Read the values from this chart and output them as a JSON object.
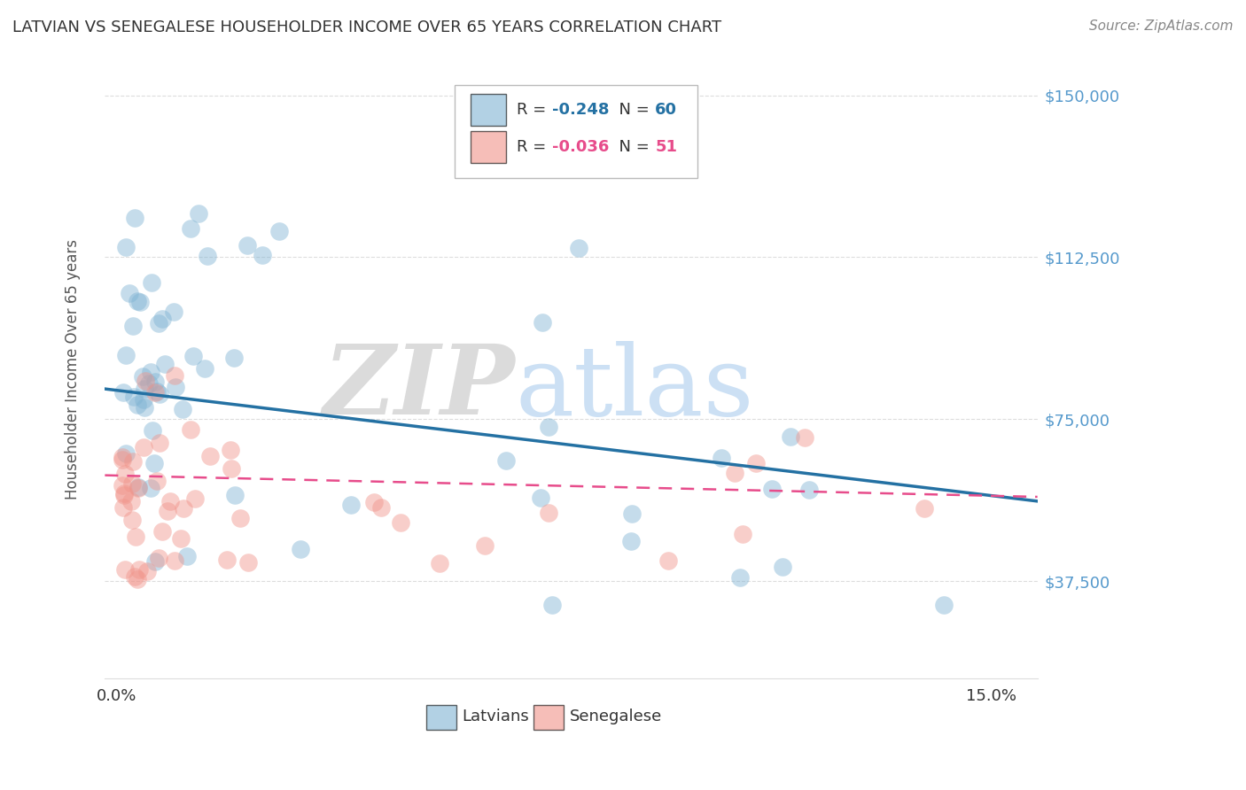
{
  "title": "LATVIAN VS SENEGALESE HOUSEHOLDER INCOME OVER 65 YEARS CORRELATION CHART",
  "source": "Source: ZipAtlas.com",
  "ylabel": "Householder Income Over 65 years",
  "ytick_labels": [
    "$37,500",
    "$75,000",
    "$112,500",
    "$150,000"
  ],
  "ytick_values": [
    37500,
    75000,
    112500,
    150000
  ],
  "ymin": 15000,
  "ymax": 158000,
  "xmin": -0.002,
  "xmax": 0.158,
  "latvian_R": -0.248,
  "latvian_N": 60,
  "senegalese_R": -0.036,
  "senegalese_N": 51,
  "background_color": "#ffffff",
  "blue_color": "#7fb3d3",
  "pink_color": "#f1948a",
  "blue_line_color": "#2471a3",
  "pink_line_color": "#e74c8b",
  "grid_color": "#dddddd",
  "title_color": "#333333",
  "source_color": "#888888",
  "ylabel_color": "#555555",
  "ytick_color": "#5599cc",
  "xtick_color": "#333333"
}
